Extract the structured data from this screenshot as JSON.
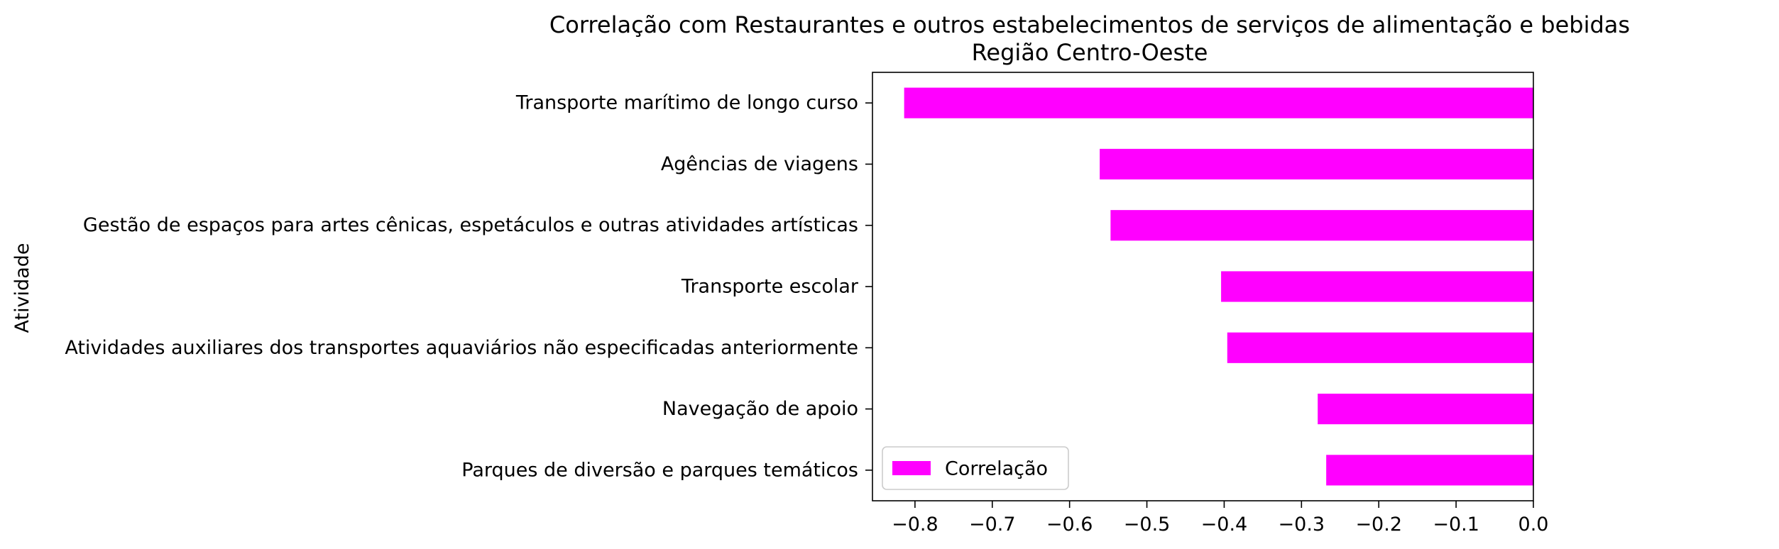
{
  "chart_data": {
    "type": "bar",
    "orientation": "horizontal",
    "title": "Correlação com Restaurantes e outros estabelecimentos de serviços de alimentação e bebidas",
    "subtitle": "Região Centro-Oeste",
    "xlabel": "",
    "ylabel": "Atividade",
    "xlim": [
      -0.855,
      0.0
    ],
    "xticks": [
      -0.8,
      -0.7,
      -0.6,
      -0.5,
      -0.4,
      -0.3,
      -0.2,
      -0.1,
      0.0
    ],
    "xtick_labels": [
      "−0.8",
      "−0.7",
      "−0.6",
      "−0.5",
      "−0.4",
      "−0.3",
      "−0.2",
      "−0.1",
      "0.0"
    ],
    "categories": [
      "Transporte marítimo de longo curso",
      "Agências de viagens",
      "Gestão de espaços para artes cênicas, espetáculos e outras atividades artísticas",
      "Transporte escolar",
      "Atividades auxiliares dos transportes aquaviários não especificadas anteriormente",
      "Navegação de apoio",
      "Parques de diversão e parques temáticos"
    ],
    "series": [
      {
        "name": "Correlação",
        "color": "#ff00ff",
        "values": [
          -0.814,
          -0.561,
          -0.547,
          -0.404,
          -0.396,
          -0.279,
          -0.268
        ]
      }
    ],
    "legend": {
      "position": "lower-left",
      "entries": [
        "Correlação"
      ]
    },
    "grid": false
  }
}
